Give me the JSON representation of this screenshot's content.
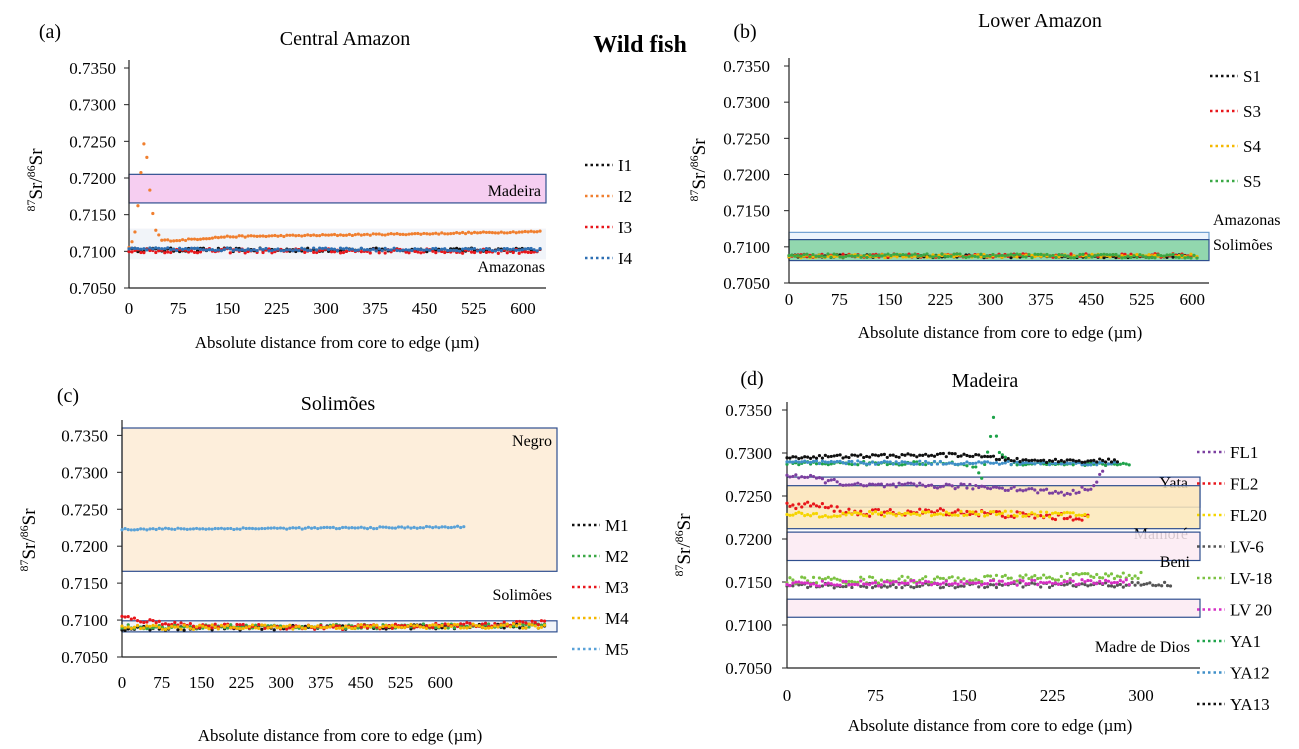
{
  "figure": {
    "heading": "Wild fish"
  },
  "chart_data": [
    {
      "panel": "(a)",
      "title": "Central Amazon",
      "type": "line",
      "xlabel": "Absolute distance from core to edge (µm)",
      "ylabel_mass1": "87",
      "ylabel_mass2": "86",
      "ylabel_elem": "Sr",
      "xlim": [
        0,
        635
      ],
      "ylim": [
        0.705,
        0.735
      ],
      "xticks": [
        "0",
        "75",
        "150",
        "225",
        "300",
        "375",
        "450",
        "525",
        "600"
      ],
      "yticks": [
        "0.7050",
        "0.7100",
        "0.7150",
        "0.7200",
        "0.7250",
        "0.7300",
        "0.7350"
      ],
      "regions": [
        {
          "label": "Madeira",
          "y0": 0.7166,
          "y1": 0.7205,
          "fill": "#f4c6ef",
          "stroke": "#2f4f8f"
        },
        {
          "label": "Amazonas",
          "y0": 0.7089,
          "y1": 0.7131,
          "fill": "#eef2f8",
          "stroke": "none"
        }
      ],
      "series": [
        {
          "name": "I1",
          "color": "#111111",
          "points": [
            [
              0,
              0.7102
            ],
            [
              600,
              0.7102
            ],
            [
              630,
              0.7101
            ]
          ],
          "amp": 0.00025
        },
        {
          "name": "I2",
          "color": "#f07f2f",
          "points": [
            [
              0,
              0.7105
            ],
            [
              8,
              0.7118
            ],
            [
              14,
              0.7165
            ],
            [
              20,
              0.7225
            ],
            [
              24,
              0.7256
            ],
            [
              28,
              0.7222
            ],
            [
              33,
              0.717
            ],
            [
              40,
              0.713
            ],
            [
              50,
              0.7115
            ],
            [
              75,
              0.7115
            ],
            [
              150,
              0.712
            ],
            [
              300,
              0.7122
            ],
            [
              450,
              0.7124
            ],
            [
              630,
              0.7127
            ]
          ],
          "amp": 0.0001
        },
        {
          "name": "I3",
          "color": "#e8161b",
          "points": [
            [
              0,
              0.7101
            ],
            [
              630,
              0.71
            ]
          ],
          "amp": 0.0003
        },
        {
          "name": "I4",
          "color": "#2d6fb3",
          "points": [
            [
              0,
              0.7103
            ],
            [
              630,
              0.7102
            ]
          ],
          "amp": 0.0002
        }
      ]
    },
    {
      "panel": "(b)",
      "title": "Lower Amazon",
      "type": "line",
      "xlabel": "Absolute distance from core to edge (µm)",
      "ylabel_mass1": "87",
      "ylabel_mass2": "86",
      "ylabel_elem": "Sr",
      "xlim": [
        0,
        625
      ],
      "ylim": [
        0.705,
        0.735
      ],
      "xticks": [
        "0",
        "75",
        "150",
        "225",
        "300",
        "375",
        "450",
        "525",
        "600"
      ],
      "yticks": [
        "0.7050",
        "0.7100",
        "0.7150",
        "0.7200",
        "0.7250",
        "0.7300",
        "0.7350"
      ],
      "regions": [
        {
          "label": "Amazonas",
          "y0": 0.711,
          "y1": 0.712,
          "fill": "#eaf2fb",
          "stroke": "#6f9fd0"
        },
        {
          "label": "Solimões",
          "y0": 0.7081,
          "y1": 0.711,
          "fill": "#7fd0a0",
          "stroke": "#2f4f8f"
        }
      ],
      "series": [
        {
          "name": "S1",
          "color": "#111111",
          "points": [
            [
              0,
              0.7087
            ],
            [
              610,
              0.7087
            ]
          ],
          "amp": 0.0002
        },
        {
          "name": "S3",
          "color": "#e8161b",
          "points": [
            [
              0,
              0.7088
            ],
            [
              610,
              0.7088
            ]
          ],
          "amp": 0.00025
        },
        {
          "name": "S4",
          "color": "#f5b800",
          "points": [
            [
              0,
              0.7087
            ],
            [
              610,
              0.7088
            ]
          ],
          "amp": 0.0002
        },
        {
          "name": "S5",
          "color": "#3aa845",
          "points": [
            [
              0,
              0.7088
            ],
            [
              610,
              0.7087
            ]
          ],
          "amp": 0.00025
        }
      ]
    },
    {
      "panel": "(c)",
      "title": "Solimões",
      "type": "line",
      "xlabel": "Absolute distance from core to edge (µm)",
      "ylabel_mass1": "87",
      "ylabel_mass2": "86",
      "ylabel_elem": "Sr",
      "xlim": [
        0,
        820
      ],
      "ylim": [
        0.705,
        0.736
      ],
      "xticks": [
        "0",
        "75",
        "150",
        "225",
        "300",
        "375",
        "450",
        "525",
        "600"
      ],
      "yticks": [
        "0.7050",
        "0.7100",
        "0.7150",
        "0.7200",
        "0.7250",
        "0.7300",
        "0.7350"
      ],
      "regions": [
        {
          "label": "Negro",
          "y0": 0.7166,
          "y1": 0.736,
          "fill": "#fdebd5",
          "stroke": "#2f4f8f"
        },
        {
          "label": "Solimões",
          "y0": 0.7084,
          "y1": 0.7099,
          "fill": "#eef2f8",
          "stroke": "#2f4f8f"
        }
      ],
      "series": [
        {
          "name": "M1",
          "color": "#111111",
          "points": [
            [
              0,
              0.7088
            ],
            [
              100,
              0.7089
            ],
            [
              400,
              0.709
            ],
            [
              800,
              0.7092
            ]
          ],
          "amp": 0.0003
        },
        {
          "name": "M2",
          "color": "#3aa845",
          "points": [
            [
              0,
              0.7091
            ],
            [
              400,
              0.7091
            ],
            [
              800,
              0.7093
            ]
          ],
          "amp": 0.0003
        },
        {
          "name": "M3",
          "color": "#e8161b",
          "points": [
            [
              0,
              0.7104
            ],
            [
              40,
              0.7099
            ],
            [
              150,
              0.7092
            ],
            [
              400,
              0.709
            ],
            [
              700,
              0.7094
            ],
            [
              800,
              0.7097
            ]
          ],
          "amp": 0.0003
        },
        {
          "name": "M4",
          "color": "#f5b800",
          "points": [
            [
              0,
              0.709
            ],
            [
              800,
              0.7092
            ]
          ],
          "amp": 0.0003
        },
        {
          "name": "M5",
          "color": "#5aa2d8",
          "points": [
            [
              0,
              0.7223
            ],
            [
              250,
              0.7224
            ],
            [
              500,
              0.7225
            ],
            [
              650,
              0.7226
            ]
          ],
          "amp": 0.00012
        }
      ]
    },
    {
      "panel": "(d)",
      "title": "Madeira",
      "type": "line",
      "xlabel": "Absolute distance from core to edge (µm)",
      "ylabel_mass1": "87",
      "ylabel_mass2": "86",
      "ylabel_elem": "Sr",
      "xlim": [
        0,
        350
      ],
      "ylim": [
        0.705,
        0.735
      ],
      "xticks": [
        "0",
        "75",
        "150",
        "225",
        "300"
      ],
      "yticks": [
        "0.7050",
        "0.7100",
        "0.7150",
        "0.7200",
        "0.7250",
        "0.7300",
        "0.7350"
      ],
      "regions": [
        {
          "label": "Yata",
          "y0": 0.7237,
          "y1": 0.7272,
          "fill": "#fbe9f1",
          "stroke": "#2f4f8f"
        },
        {
          "label": "Mamoré",
          "y0": 0.7212,
          "y1": 0.7262,
          "fill": "#fbe7b8",
          "stroke": "#2f4f8f"
        },
        {
          "label": "Beni",
          "y0": 0.7175,
          "y1": 0.7208,
          "fill": "#fbeaf2",
          "stroke": "#2f4f8f"
        },
        {
          "label": "Madre de Dios",
          "y0": 0.7109,
          "y1": 0.713,
          "fill": "#fbeaf2",
          "stroke": "#2f4f8f"
        }
      ],
      "series": [
        {
          "name": "FL1",
          "color": "#7b3fa0",
          "points": [
            [
              0,
              0.7275
            ],
            [
              25,
              0.727
            ],
            [
              60,
              0.7262
            ],
            [
              120,
              0.7262
            ],
            [
              180,
              0.726
            ],
            [
              240,
              0.7253
            ],
            [
              260,
              0.7262
            ],
            [
              270,
              0.7285
            ]
          ],
          "amp": 0.0003
        },
        {
          "name": "FL2",
          "color": "#e8161b",
          "points": [
            [
              0,
              0.7238
            ],
            [
              20,
              0.724
            ],
            [
              60,
              0.723
            ],
            [
              140,
              0.7232
            ],
            [
              220,
              0.7226
            ],
            [
              255,
              0.7225
            ]
          ],
          "amp": 0.0004
        },
        {
          "name": "FL20",
          "color": "#f5d500",
          "points": [
            [
              0,
              0.7228
            ],
            [
              150,
              0.723
            ],
            [
              255,
              0.7228
            ]
          ],
          "amp": 0.0003
        },
        {
          "name": "LV-6",
          "color": "#555555",
          "points": [
            [
              0,
              0.7146
            ],
            [
              160,
              0.7146
            ],
            [
              325,
              0.7147
            ]
          ],
          "amp": 0.0003
        },
        {
          "name": "LV-18",
          "color": "#7cc242",
          "points": [
            [
              0,
              0.7152
            ],
            [
              150,
              0.7153
            ],
            [
              300,
              0.7158
            ]
          ],
          "amp": 0.0004
        },
        {
          "name": "LV 20",
          "color": "#d62fc4",
          "points": [
            [
              0,
              0.7148
            ],
            [
              150,
              0.7149
            ],
            [
              290,
              0.715
            ]
          ],
          "amp": 0.0003
        },
        {
          "name": "YA1",
          "color": "#1ea34a",
          "points": [
            [
              0,
              0.7288
            ],
            [
              140,
              0.7288
            ],
            [
              160,
              0.7285
            ],
            [
              165,
              0.727
            ],
            [
              170,
              0.73
            ],
            [
              175,
              0.7342
            ],
            [
              180,
              0.73
            ],
            [
              190,
              0.7288
            ],
            [
              290,
              0.7287
            ]
          ],
          "amp": 0.0002
        },
        {
          "name": "YA12",
          "color": "#3f8fc8",
          "points": [
            [
              0,
              0.7289
            ],
            [
              280,
              0.7288
            ]
          ],
          "amp": 0.0002
        },
        {
          "name": "YA13",
          "color": "#111111",
          "points": [
            [
              0,
              0.7295
            ],
            [
              150,
              0.7298
            ],
            [
              170,
              0.7295
            ],
            [
              200,
              0.7291
            ],
            [
              280,
              0.7291
            ]
          ],
          "amp": 0.0002
        }
      ]
    }
  ]
}
